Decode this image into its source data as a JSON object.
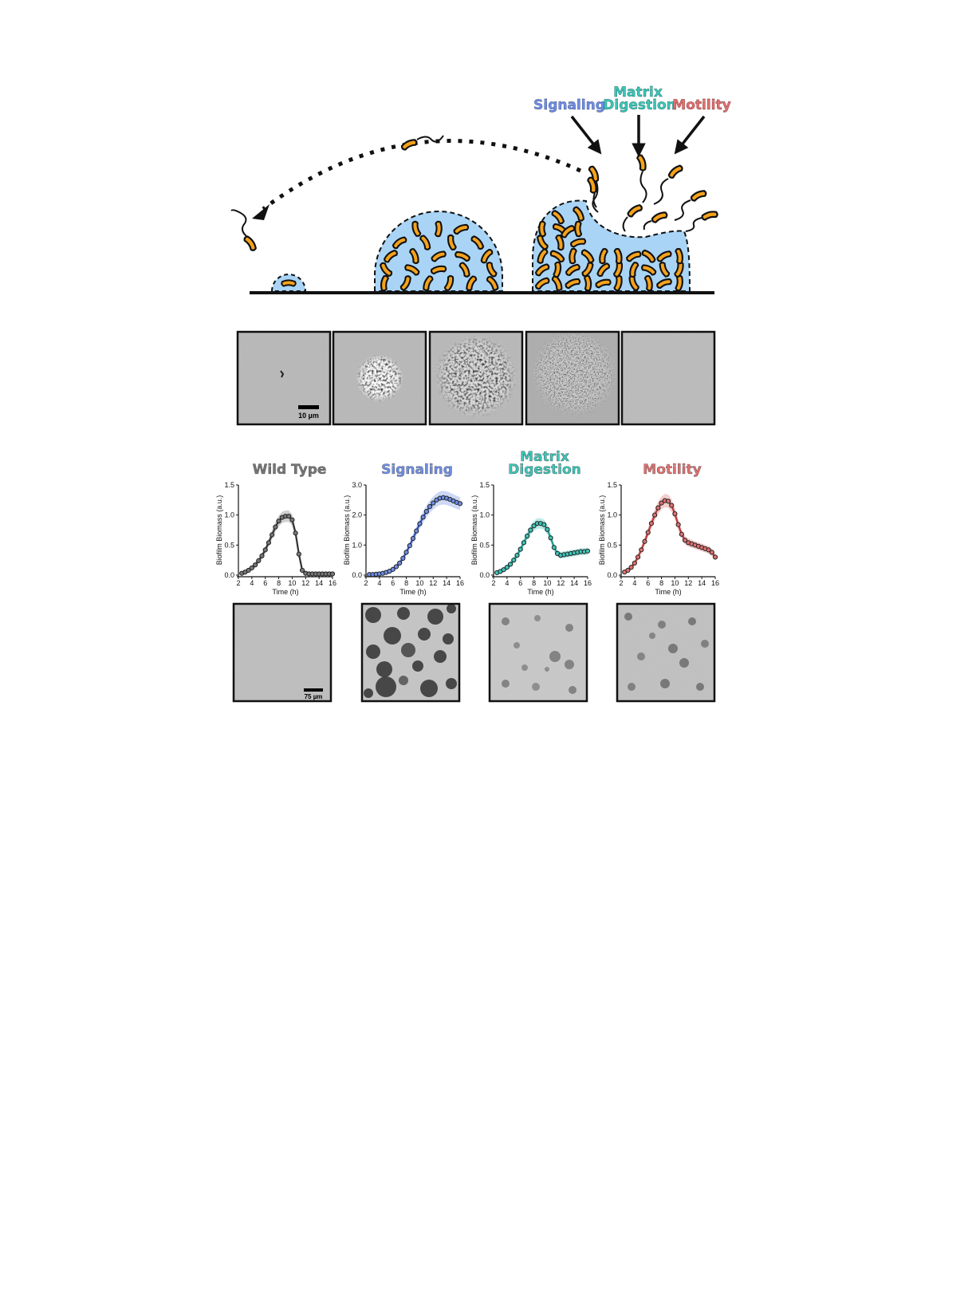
{
  "schematic": {
    "labels": [
      {
        "text": "Signaling",
        "color": "#6f8fe6"
      },
      {
        "text": "Matrix",
        "color": "#3cc6b8"
      },
      {
        "text": "Digestion",
        "color": "#3cc6b8"
      },
      {
        "text": "Motility",
        "color": "#e07070"
      }
    ],
    "colors": {
      "matrix": "#a9d4f5",
      "cell": "#f5a21b",
      "outline": "#111111"
    }
  },
  "micrographs": {
    "panels": [
      "stage-1",
      "stage-2",
      "stage-3",
      "stage-4",
      "stage-5"
    ],
    "scale_bar": "10 µm"
  },
  "chart_data": [
    {
      "type": "line",
      "title": "Wild Type",
      "color": "#777777",
      "line_color": "#333333",
      "xlabel": "Time (h)",
      "ylabel": "Biofilm Biomass (a.u.)",
      "xlim": [
        2,
        16
      ],
      "ylim": [
        0,
        1.5
      ],
      "yticks": [
        "0.0",
        "0.5",
        "1.0",
        "1.5"
      ],
      "xticks": [
        "2",
        "4",
        "6",
        "8",
        "10",
        "12",
        "14",
        "16"
      ],
      "x": [
        2.5,
        3,
        3.5,
        4,
        4.5,
        5,
        5.5,
        6,
        6.5,
        7,
        7.5,
        8,
        8.5,
        9,
        9.5,
        10,
        10.5,
        11,
        11.5,
        12,
        12.5,
        13,
        13.5,
        14,
        14.5,
        15,
        15.5,
        16
      ],
      "y": [
        0.03,
        0.05,
        0.08,
        0.12,
        0.17,
        0.24,
        0.32,
        0.42,
        0.54,
        0.67,
        0.8,
        0.9,
        0.96,
        0.98,
        0.98,
        0.92,
        0.7,
        0.35,
        0.08,
        0.03,
        0.02,
        0.02,
        0.02,
        0.02,
        0.02,
        0.02,
        0.02,
        0.02
      ]
    },
    {
      "type": "line",
      "title": "Signaling",
      "color": "#6f8fe6",
      "line_color": "#2a4fb0",
      "xlabel": "Time (h)",
      "ylabel": "Biofilm Biomass (a.u.)",
      "xlim": [
        2,
        16
      ],
      "ylim": [
        0,
        3.0
      ],
      "yticks": [
        "0.0",
        "1.0",
        "2.0",
        "3.0"
      ],
      "xticks": [
        "2",
        "4",
        "6",
        "8",
        "10",
        "12",
        "14",
        "16"
      ],
      "x": [
        2.5,
        3,
        3.5,
        4,
        4.5,
        5,
        5.5,
        6,
        6.5,
        7,
        7.5,
        8,
        8.5,
        9,
        9.5,
        10,
        10.5,
        11,
        11.5,
        12,
        12.5,
        13,
        13.5,
        14,
        14.5,
        15,
        15.5,
        16
      ],
      "y": [
        0.02,
        0.02,
        0.03,
        0.04,
        0.06,
        0.09,
        0.13,
        0.19,
        0.28,
        0.4,
        0.56,
        0.76,
        0.98,
        1.22,
        1.47,
        1.71,
        1.93,
        2.12,
        2.28,
        2.4,
        2.5,
        2.56,
        2.58,
        2.56,
        2.52,
        2.47,
        2.42,
        2.38
      ]
    },
    {
      "type": "line",
      "title": "Matrix\nDigestion",
      "title_lines": [
        "Matrix",
        "Digestion"
      ],
      "color": "#3cc6b8",
      "line_color": "#1f9a8f",
      "xlabel": "Time (h)",
      "ylabel": "Biofilm Biomass (a.u.)",
      "xlim": [
        2,
        16
      ],
      "ylim": [
        0,
        1.5
      ],
      "yticks": [
        "0.0",
        "0.5",
        "1.0",
        "1.5"
      ],
      "xticks": [
        "2",
        "4",
        "6",
        "8",
        "10",
        "12",
        "14",
        "16"
      ],
      "x": [
        2.5,
        3,
        3.5,
        4,
        4.5,
        5,
        5.5,
        6,
        6.5,
        7,
        7.5,
        8,
        8.5,
        9,
        9.5,
        10,
        10.5,
        11,
        11.5,
        12,
        12.5,
        13,
        13.5,
        14,
        14.5,
        15,
        15.5,
        16
      ],
      "y": [
        0.04,
        0.06,
        0.09,
        0.13,
        0.18,
        0.25,
        0.33,
        0.43,
        0.54,
        0.65,
        0.75,
        0.82,
        0.86,
        0.86,
        0.84,
        0.76,
        0.62,
        0.46,
        0.36,
        0.33,
        0.34,
        0.35,
        0.36,
        0.37,
        0.38,
        0.39,
        0.39,
        0.4
      ]
    },
    {
      "type": "line",
      "title": "Motility",
      "color": "#e07070",
      "line_color": "#b83a3a",
      "xlabel": "Time (h)",
      "ylabel": "Biofilm Biomass (a.u.)",
      "xlim": [
        2,
        16
      ],
      "ylim": [
        0,
        1.5
      ],
      "yticks": [
        "0.0",
        "0.5",
        "1.0",
        "1.5"
      ],
      "xticks": [
        "2",
        "4",
        "6",
        "8",
        "10",
        "12",
        "14",
        "16"
      ],
      "x": [
        2.5,
        3,
        3.5,
        4,
        4.5,
        5,
        5.5,
        6,
        6.5,
        7,
        7.5,
        8,
        8.5,
        9,
        9.5,
        10,
        10.5,
        11,
        11.5,
        12,
        12.5,
        13,
        13.5,
        14,
        14.5,
        15,
        15.5,
        16
      ],
      "y": [
        0.05,
        0.08,
        0.13,
        0.2,
        0.3,
        0.42,
        0.56,
        0.71,
        0.86,
        1.0,
        1.12,
        1.2,
        1.24,
        1.23,
        1.16,
        1.02,
        0.84,
        0.68,
        0.58,
        0.54,
        0.52,
        0.5,
        0.48,
        0.46,
        0.44,
        0.42,
        0.38,
        0.3
      ]
    }
  ],
  "bottom_micrographs": {
    "panels": [
      "wild-type",
      "signaling",
      "matrix-digestion",
      "motility"
    ],
    "scale_bar": "75 µm"
  }
}
